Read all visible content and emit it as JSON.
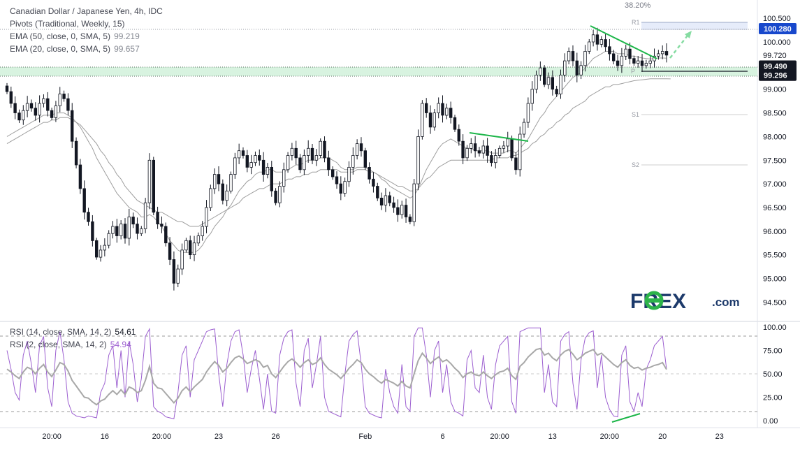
{
  "legend": {
    "symbol": "Canadian Dollar / Japanese Yen, 4h, IDC",
    "pivots": "Pivots (Traditional, Weekly, 15)",
    "ema50_label": "EMA (50, close, 0, SMA, 5)",
    "ema50_value": "99.219",
    "ema20_label": "EMA (20, close, 0, SMA, 5)",
    "ema20_value": "99.657",
    "rsi14_label": "RSI (14, close, SMA, 14, 2)",
    "rsi14_value": "54.61",
    "rsi2_label": "RSI (2, close, SMA, 14, 2)",
    "rsi2_value": "54.94"
  },
  "annotations": {
    "fib": "38.20%",
    "r1": "R1",
    "p": "P",
    "s1": "S1",
    "s2": "S2"
  },
  "price_axis": {
    "ticks": [
      "100.500",
      "100.000",
      "99.720",
      "99.000",
      "98.500",
      "98.000",
      "97.500",
      "97.000",
      "96.500",
      "96.000",
      "95.500",
      "95.000",
      "94.500"
    ],
    "badges": [
      {
        "text": "100.280",
        "color": "#1848cc"
      },
      {
        "text": "99.490",
        "color": "#131722"
      },
      {
        "text": "99.296",
        "color": "#131722"
      }
    ]
  },
  "rsi_axis": {
    "ticks": [
      "100.00",
      "75.00",
      "50.00",
      "25.00",
      "0.00"
    ]
  },
  "time_axis": {
    "labels": [
      "20:00",
      "16",
      "20:00",
      "23",
      "26",
      "Feb",
      "6",
      "20:00",
      "13",
      "20:00",
      "20",
      "23"
    ]
  },
  "logo": {
    "part1": "F",
    "part2": "REX",
    "suffix": ".com",
    "navy": "#1d3a6b",
    "green": "#2db34a"
  },
  "colors": {
    "candle": "#131722",
    "ema": "#9e9e9e",
    "rsi2": "#9c5fd0",
    "rsi14": "#a8a8a8",
    "trend": "#1db64a",
    "zone": "#d8f3e0"
  },
  "chart_data": {
    "type": "candlestick",
    "symbol": "CADJPY",
    "timeframe": "4h",
    "ylim": [
      94.3,
      100.95
    ],
    "zone": [
      99.296,
      99.49
    ],
    "levels": {
      "R1": 100.28,
      "P": 99.49,
      "S1": 98.5,
      "S2": 97.45
    },
    "close": [
      98.95,
      98.7,
      98.5,
      98.35,
      98.55,
      98.7,
      98.6,
      98.45,
      98.7,
      98.8,
      98.55,
      98.4,
      98.65,
      98.9,
      98.8,
      98.55,
      97.9,
      97.4,
      96.9,
      96.4,
      96.2,
      95.8,
      95.45,
      95.6,
      95.7,
      95.95,
      96.1,
      95.9,
      96.15,
      95.85,
      96.3,
      96.15,
      95.95,
      96.05,
      96.6,
      97.5,
      96.4,
      96.15,
      96.1,
      95.75,
      95.4,
      94.9,
      95.2,
      95.6,
      95.8,
      95.5,
      95.75,
      95.9,
      96.1,
      96.5,
      96.9,
      97.2,
      97.0,
      96.65,
      96.85,
      97.2,
      97.55,
      97.7,
      97.6,
      97.35,
      97.45,
      97.6,
      97.5,
      97.2,
      97.35,
      96.85,
      96.6,
      96.95,
      97.3,
      97.6,
      97.75,
      97.55,
      97.3,
      97.6,
      97.75,
      97.5,
      97.6,
      97.9,
      97.55,
      97.3,
      97.15,
      97.0,
      96.8,
      97.05,
      97.35,
      97.6,
      97.85,
      97.7,
      97.35,
      97.1,
      96.95,
      96.7,
      96.55,
      96.75,
      96.6,
      96.5,
      96.35,
      96.55,
      96.3,
      96.2,
      97.0,
      98.0,
      98.7,
      98.5,
      98.2,
      98.5,
      98.7,
      98.45,
      98.6,
      98.4,
      98.15,
      97.9,
      97.55,
      97.75,
      97.85,
      97.7,
      97.65,
      97.8,
      97.6,
      97.45,
      97.6,
      97.75,
      97.8,
      97.95,
      97.55,
      97.3,
      98.05,
      98.3,
      98.7,
      99.0,
      99.3,
      99.45,
      99.1,
      99.25,
      99.0,
      98.9,
      99.3,
      99.6,
      99.8,
      99.6,
      99.3,
      99.5,
      99.8,
      100.0,
      100.15,
      99.95,
      100.05,
      99.9,
      99.75,
      99.6,
      99.5,
      99.7,
      99.85,
      99.65,
      99.55,
      99.6,
      99.5,
      99.55,
      99.6,
      99.7,
      99.75,
      99.8,
      99.72
    ],
    "ema20": [
      98.0,
      98.05,
      98.1,
      98.15,
      98.2,
      98.25,
      98.3,
      98.35,
      98.4,
      98.45,
      98.45,
      98.45,
      98.5,
      98.5,
      98.5,
      98.45,
      98.4,
      98.3,
      98.2,
      98.05,
      97.9,
      97.75,
      97.55,
      97.4,
      97.25,
      97.1,
      96.95,
      96.8,
      96.7,
      96.6,
      96.5,
      96.45,
      96.4,
      96.3,
      96.3,
      96.35,
      96.3,
      96.2,
      96.1,
      95.95,
      95.8,
      95.7,
      95.6,
      95.55,
      95.55,
      95.55,
      95.55,
      95.6,
      95.7,
      95.85,
      95.95,
      96.1,
      96.2,
      96.3,
      96.45,
      96.55,
      96.7,
      96.85,
      96.95,
      97.05,
      97.1,
      97.2,
      97.25,
      97.25,
      97.3,
      97.3,
      97.25,
      97.25,
      97.25,
      97.3,
      97.35,
      97.4,
      97.4,
      97.45,
      97.5,
      97.5,
      97.5,
      97.55,
      97.55,
      97.55,
      97.5,
      97.45,
      97.35,
      97.3,
      97.3,
      97.3,
      97.35,
      97.35,
      97.35,
      97.3,
      97.25,
      97.2,
      97.1,
      97.05,
      96.95,
      96.9,
      96.85,
      96.8,
      96.75,
      96.7,
      96.75,
      96.9,
      97.1,
      97.3,
      97.45,
      97.6,
      97.75,
      97.85,
      97.9,
      97.95,
      97.9,
      97.85,
      97.8,
      97.75,
      97.75,
      97.7,
      97.7,
      97.7,
      97.7,
      97.65,
      97.65,
      97.65,
      97.65,
      97.7,
      97.7,
      97.65,
      97.75,
      97.85,
      97.95,
      98.1,
      98.25,
      98.4,
      98.5,
      98.65,
      98.75,
      98.85,
      98.95,
      99.05,
      99.15,
      99.25,
      99.3,
      99.35,
      99.45,
      99.55,
      99.65,
      99.7,
      99.75,
      99.8,
      99.8,
      99.8,
      99.75,
      99.75,
      99.75,
      99.7,
      99.7,
      99.68,
      99.66,
      99.65,
      99.64,
      99.65,
      99.66,
      99.66,
      99.657
    ],
    "ema50": [
      97.85,
      97.9,
      97.95,
      98.0,
      98.05,
      98.1,
      98.15,
      98.2,
      98.25,
      98.3,
      98.3,
      98.35,
      98.35,
      98.4,
      98.4,
      98.4,
      98.35,
      98.3,
      98.25,
      98.15,
      98.05,
      97.95,
      97.85,
      97.7,
      97.6,
      97.45,
      97.35,
      97.2,
      97.1,
      96.95,
      96.85,
      96.75,
      96.65,
      96.6,
      96.55,
      96.5,
      96.45,
      96.4,
      96.4,
      96.35,
      96.3,
      96.25,
      96.2,
      96.2,
      96.15,
      96.1,
      96.1,
      96.1,
      96.15,
      96.2,
      96.25,
      96.3,
      96.35,
      96.4,
      96.45,
      96.5,
      96.55,
      96.6,
      96.7,
      96.75,
      96.8,
      96.85,
      96.9,
      96.9,
      96.95,
      97.0,
      97.0,
      97.0,
      97.05,
      97.1,
      97.1,
      97.15,
      97.15,
      97.2,
      97.2,
      97.25,
      97.25,
      97.3,
      97.3,
      97.3,
      97.3,
      97.3,
      97.25,
      97.25,
      97.25,
      97.25,
      97.3,
      97.3,
      97.3,
      97.25,
      97.25,
      97.2,
      97.15,
      97.1,
      97.05,
      97.0,
      96.95,
      96.95,
      96.9,
      96.85,
      96.85,
      96.9,
      97.0,
      97.1,
      97.15,
      97.25,
      97.35,
      97.4,
      97.45,
      97.5,
      97.5,
      97.5,
      97.5,
      97.5,
      97.5,
      97.5,
      97.5,
      97.5,
      97.5,
      97.5,
      97.55,
      97.55,
      97.55,
      97.55,
      97.6,
      97.6,
      97.65,
      97.7,
      97.75,
      97.85,
      97.9,
      98.0,
      98.05,
      98.15,
      98.2,
      98.3,
      98.35,
      98.45,
      98.5,
      98.6,
      98.65,
      98.7,
      98.75,
      98.85,
      98.9,
      98.95,
      99.0,
      99.05,
      99.05,
      99.1,
      99.1,
      99.12,
      99.14,
      99.16,
      99.18,
      99.19,
      99.2,
      99.21,
      99.22,
      99.22,
      99.22,
      99.22,
      99.22,
      99.219
    ],
    "rsi14": [
      55,
      52,
      48,
      45,
      52,
      57,
      55,
      50,
      56,
      60,
      52,
      47,
      54,
      62,
      60,
      53,
      43,
      37,
      31,
      25,
      24,
      20,
      17,
      21,
      23,
      28,
      32,
      28,
      33,
      28,
      36,
      34,
      30,
      32,
      43,
      58,
      40,
      35,
      34,
      29,
      24,
      19,
      24,
      32,
      36,
      31,
      36,
      40,
      44,
      52,
      58,
      63,
      59,
      52,
      56,
      62,
      67,
      69,
      66,
      61,
      63,
      65,
      63,
      57,
      59,
      50,
      46,
      52,
      58,
      63,
      66,
      62,
      57,
      62,
      65,
      60,
      62,
      67,
      60,
      55,
      52,
      49,
      45,
      50,
      56,
      60,
      65,
      62,
      55,
      50,
      47,
      43,
      40,
      44,
      42,
      40,
      37,
      42,
      37,
      35,
      50,
      64,
      72,
      67,
      61,
      65,
      68,
      63,
      65,
      61,
      56,
      52,
      46,
      50,
      52,
      49,
      48,
      52,
      48,
      45,
      49,
      52,
      53,
      56,
      48,
      44,
      58,
      62,
      68,
      72,
      76,
      77,
      70,
      72,
      67,
      64,
      70,
      74,
      76,
      71,
      65,
      68,
      72,
      74,
      76,
      70,
      72,
      68,
      64,
      60,
      57,
      62,
      65,
      59,
      56,
      57,
      54,
      56,
      57,
      59,
      60,
      62,
      54.61
    ],
    "rsi2": [
      75,
      55,
      30,
      22,
      70,
      85,
      60,
      30,
      80,
      90,
      35,
      15,
      75,
      95,
      65,
      20,
      8,
      5,
      4,
      3,
      5,
      4,
      3,
      30,
      40,
      70,
      80,
      35,
      75,
      25,
      85,
      60,
      20,
      45,
      90,
      98,
      15,
      10,
      8,
      4,
      3,
      2,
      30,
      70,
      80,
      25,
      65,
      75,
      85,
      95,
      97,
      98,
      50,
      15,
      60,
      85,
      95,
      97,
      70,
      30,
      55,
      75,
      45,
      12,
      50,
      10,
      8,
      70,
      88,
      95,
      97,
      40,
      15,
      75,
      88,
      35,
      60,
      90,
      25,
      10,
      8,
      6,
      4,
      50,
      85,
      92,
      96,
      60,
      15,
      8,
      6,
      4,
      3,
      55,
      30,
      15,
      8,
      60,
      15,
      10,
      90,
      99,
      99,
      70,
      25,
      75,
      85,
      30,
      60,
      20,
      10,
      8,
      5,
      65,
      75,
      35,
      30,
      70,
      25,
      12,
      60,
      80,
      85,
      90,
      20,
      8,
      95,
      97,
      99,
      99,
      99,
      99,
      30,
      60,
      20,
      15,
      85,
      92,
      95,
      40,
      12,
      65,
      88,
      94,
      96,
      35,
      70,
      25,
      12,
      5,
      4,
      70,
      80,
      20,
      10,
      30,
      15,
      55,
      65,
      80,
      85,
      90,
      54.94
    ]
  }
}
